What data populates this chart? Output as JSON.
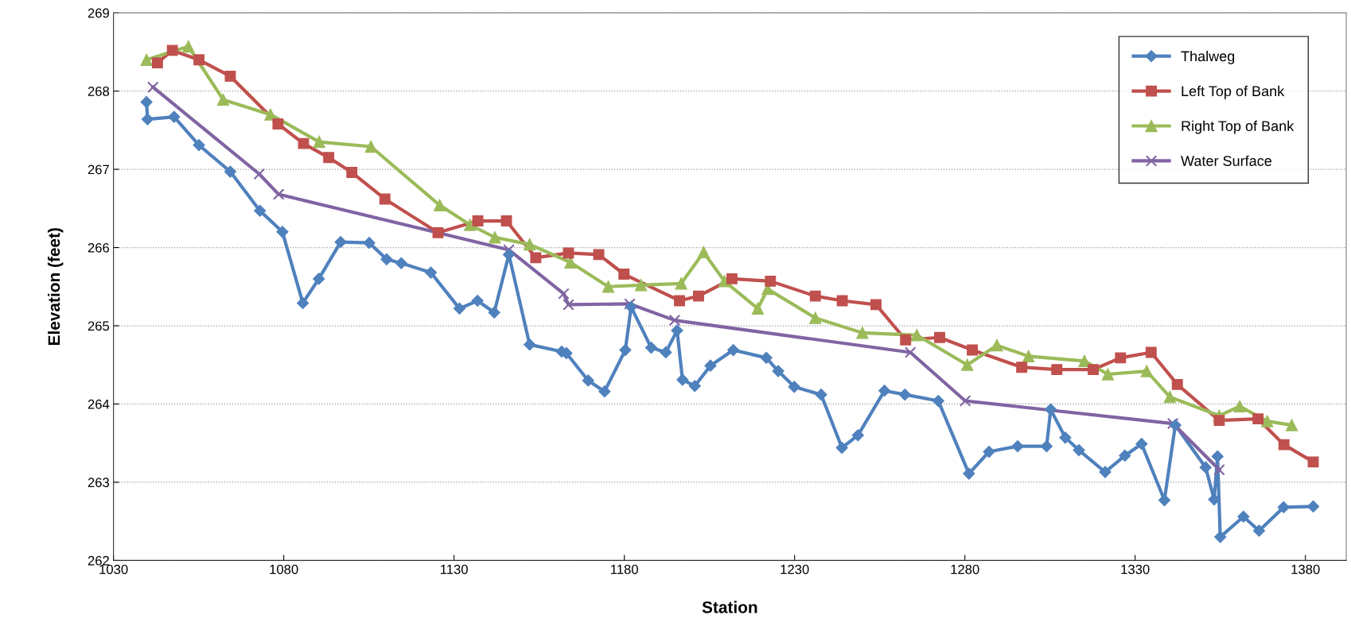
{
  "chart_data": {
    "type": "line",
    "xlabel": "Station",
    "ylabel": "Elevation (feet)",
    "xlim": [
      1030,
      1392
    ],
    "xticks": [
      1030,
      1080,
      1130,
      1180,
      1230,
      1280,
      1330,
      1380
    ],
    "ylim": [
      262,
      269
    ],
    "yticks": [
      262,
      263,
      264,
      265,
      266,
      267,
      268,
      269
    ],
    "grid": "y",
    "legend": "top right",
    "series": [
      {
        "name": "Thalweg",
        "color": "#4f81bd",
        "marker": "diamond",
        "x": [
          1039.7,
          1040.0,
          1047.8,
          1055.1,
          1064.3,
          1073.0,
          1079.6,
          1085.6,
          1090.3,
          1096.7,
          1105.1,
          1110.2,
          1114.5,
          1123.2,
          1131.6,
          1136.9,
          1141.8,
          1146.1,
          1152.2,
          1161.6,
          1163.0,
          1169.4,
          1174.2,
          1180.3,
          1182.0,
          1187.9,
          1192.2,
          1195.5,
          1197.1,
          1200.7,
          1205.3,
          1212.0,
          1221.7,
          1225.2,
          1229.9,
          1237.8,
          1243.9,
          1248.6,
          1256.4,
          1262.4,
          1272.2,
          1281.2,
          1287.1,
          1295.5,
          1304.0,
          1305.2,
          1309.5,
          1313.5,
          1321.2,
          1327.0,
          1331.9,
          1338.6,
          1341.8,
          1350.7,
          1353.2,
          1354.2,
          1355.0,
          1361.8,
          1366.4,
          1373.6,
          1382.3
        ],
        "values": [
          267.86,
          267.64,
          267.67,
          267.31,
          266.97,
          266.47,
          266.2,
          265.29,
          265.6,
          266.07,
          266.06,
          265.85,
          265.8,
          265.68,
          265.22,
          265.32,
          265.17,
          265.91,
          264.76,
          264.67,
          264.65,
          264.3,
          264.16,
          264.69,
          265.24,
          264.72,
          264.66,
          264.94,
          264.31,
          264.23,
          264.49,
          264.69,
          264.59,
          264.42,
          264.22,
          264.12,
          263.44,
          263.6,
          264.17,
          264.12,
          264.04,
          263.11,
          263.39,
          263.46,
          263.46,
          263.93,
          263.57,
          263.41,
          263.13,
          263.34,
          263.49,
          262.77,
          263.73,
          263.19,
          262.78,
          263.33,
          262.3,
          262.56,
          262.38,
          262.68,
          262.69
        ]
      },
      {
        "name": "Left Top of Bank",
        "color": "#c0504d",
        "marker": "square",
        "x": [
          1042.9,
          1047.3,
          1055.1,
          1064.3,
          1078.3,
          1085.8,
          1093.2,
          1100.0,
          1109.7,
          1125.3,
          1137.0,
          1145.4,
          1154.0,
          1163.6,
          1172.5,
          1179.9,
          1196.2,
          1201.8,
          1211.6,
          1222.9,
          1236.1,
          1244.0,
          1253.9,
          1262.6,
          1272.6,
          1282.2,
          1296.7,
          1307.0,
          1317.7,
          1325.7,
          1334.7,
          1342.4,
          1354.7,
          1366.1,
          1373.7,
          1382.3
        ],
        "values": [
          268.36,
          268.52,
          268.4,
          268.19,
          267.58,
          267.33,
          267.15,
          266.96,
          266.62,
          266.19,
          266.34,
          266.34,
          265.87,
          265.93,
          265.91,
          265.66,
          265.32,
          265.38,
          265.6,
          265.57,
          265.38,
          265.32,
          265.27,
          264.82,
          264.85,
          264.69,
          264.47,
          264.44,
          264.44,
          264.59,
          264.66,
          264.25,
          263.79,
          263.81,
          263.48,
          263.26
        ]
      },
      {
        "name": "Right Top of Bank",
        "color": "#9bbb59",
        "marker": "triangle",
        "x": [
          1039.7,
          1052.0,
          1062.2,
          1076.1,
          1090.4,
          1105.6,
          1125.8,
          1134.7,
          1142.0,
          1152.2,
          1164.2,
          1175.3,
          1184.9,
          1196.7,
          1203.3,
          1209.4,
          1219.2,
          1222.1,
          1236.1,
          1249.9,
          1265.9,
          1280.7,
          1289.4,
          1298.7,
          1315.1,
          1322.0,
          1333.4,
          1340.2,
          1354.7,
          1360.7,
          1368.8,
          1376.0
        ],
        "values": [
          268.4,
          268.57,
          267.89,
          267.7,
          267.35,
          267.29,
          266.54,
          266.29,
          266.13,
          266.04,
          265.81,
          265.5,
          265.52,
          265.54,
          265.94,
          265.57,
          265.22,
          265.47,
          265.1,
          264.91,
          264.88,
          264.5,
          264.75,
          264.61,
          264.55,
          264.38,
          264.42,
          264.09,
          263.85,
          263.97,
          263.78,
          263.73
        ]
      },
      {
        "name": "Water Surface",
        "color": "#8064a2",
        "marker": "cross",
        "x": [
          1041.6,
          1072.8,
          1078.5,
          1146.1,
          1162.2,
          1163.6,
          1181.6,
          1194.8,
          1264.0,
          1280.1,
          1341.1,
          1354.7
        ],
        "values": [
          268.05,
          266.94,
          266.68,
          265.97,
          265.41,
          265.27,
          265.28,
          265.07,
          264.66,
          264.04,
          263.75,
          263.16
        ]
      }
    ]
  }
}
